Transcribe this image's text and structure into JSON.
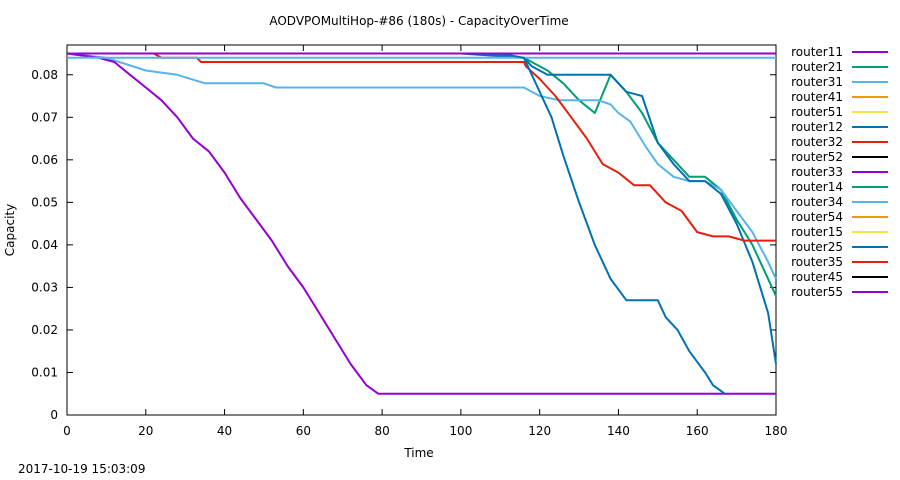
{
  "chart_data": {
    "type": "line",
    "title": "AODVPOMultiHop-#86 (180s) - CapacityOverTime",
    "xlabel": "Time",
    "ylabel": "Capacity",
    "xlim": [
      0,
      180
    ],
    "ylim": [
      0,
      0.087
    ],
    "xticks": [
      0,
      20,
      40,
      60,
      80,
      100,
      120,
      140,
      160,
      180
    ],
    "yticks": [
      0,
      0.01,
      0.02,
      0.03,
      0.04,
      0.05,
      0.06,
      0.07,
      0.08
    ],
    "ytick_labels": [
      "0",
      "0.01",
      "0.02",
      "0.03",
      "0.04",
      "0.05",
      "0.06",
      "0.07",
      "0.08"
    ],
    "grid": false,
    "legend_position": "right",
    "series": [
      {
        "name": "router11",
        "color": "#9400d3",
        "x": [
          0,
          180
        ],
        "y": [
          0.085,
          0.085
        ]
      },
      {
        "name": "router21",
        "color": "#009e73",
        "x": [
          0,
          105,
          116,
          118,
          122,
          126,
          130,
          134,
          138,
          142,
          146,
          150,
          154,
          158,
          162,
          166,
          170,
          174,
          178,
          180
        ],
        "y": [
          0.085,
          0.085,
          0.084,
          0.083,
          0.081,
          0.078,
          0.074,
          0.071,
          0.08,
          0.076,
          0.071,
          0.064,
          0.06,
          0.056,
          0.056,
          0.053,
          0.046,
          0.04,
          0.032,
          0.028
        ]
      },
      {
        "name": "router31",
        "color": "#56b4e9",
        "x": [
          0,
          10,
          20,
          28,
          35,
          50,
          53,
          80,
          100,
          116,
          120,
          125,
          135,
          138,
          140,
          143,
          147,
          150,
          154,
          158,
          162,
          166,
          170,
          174,
          178,
          180
        ],
        "y": [
          0.085,
          0.084,
          0.081,
          0.08,
          0.078,
          0.078,
          0.077,
          0.077,
          0.077,
          0.077,
          0.075,
          0.074,
          0.074,
          0.073,
          0.071,
          0.069,
          0.063,
          0.059,
          0.056,
          0.055,
          0.055,
          0.053,
          0.048,
          0.043,
          0.036,
          0.032
        ]
      },
      {
        "name": "router41",
        "color": "#e69f00",
        "x": [],
        "y": []
      },
      {
        "name": "router51",
        "color": "#f0e442",
        "x": [],
        "y": []
      },
      {
        "name": "router12",
        "color": "#0072b2",
        "x": [
          0,
          100,
          116,
          118,
          122,
          126,
          130,
          134,
          138,
          142,
          146,
          150,
          154,
          158,
          162,
          166,
          170,
          174,
          178,
          180
        ],
        "y": [
          0.085,
          0.085,
          0.084,
          0.082,
          0.08,
          0.08,
          0.08,
          0.08,
          0.08,
          0.076,
          0.075,
          0.064,
          0.059,
          0.055,
          0.055,
          0.052,
          0.045,
          0.036,
          0.024,
          0.012
        ]
      },
      {
        "name": "router32",
        "color": "#e51e10",
        "x": [
          0,
          22,
          24,
          33,
          34,
          116,
          116.5,
          120,
          124,
          128,
          132,
          136,
          140,
          144,
          148,
          152,
          156,
          160,
          164,
          168,
          172,
          176,
          180
        ],
        "y": [
          0.085,
          0.085,
          0.084,
          0.084,
          0.083,
          0.083,
          0.082,
          0.079,
          0.075,
          0.07,
          0.065,
          0.059,
          0.057,
          0.054,
          0.054,
          0.05,
          0.048,
          0.043,
          0.042,
          0.042,
          0.041,
          0.041,
          0.041
        ]
      },
      {
        "name": "router52",
        "color": "#000000",
        "x": [],
        "y": []
      },
      {
        "name": "router33",
        "color": "#9400d3",
        "x": [
          0,
          8,
          12,
          16,
          20,
          24,
          28,
          32,
          36,
          40,
          44,
          48,
          52,
          56,
          60,
          64,
          68,
          72,
          76,
          79,
          80,
          100,
          120,
          140,
          160,
          180
        ],
        "y": [
          0.085,
          0.084,
          0.083,
          0.08,
          0.077,
          0.074,
          0.07,
          0.065,
          0.062,
          0.057,
          0.051,
          0.046,
          0.041,
          0.035,
          0.03,
          0.024,
          0.018,
          0.012,
          0.007,
          0.005,
          0.005,
          0.005,
          0.005,
          0.005,
          0.005,
          0.005
        ]
      },
      {
        "name": "router14",
        "color": "#009e73",
        "x": [],
        "y": []
      },
      {
        "name": "router34",
        "color": "#56b4e9",
        "x": [
          0,
          180
        ],
        "y": [
          0.084,
          0.084
        ]
      },
      {
        "name": "router54",
        "color": "#e69f00",
        "x": [],
        "y": []
      },
      {
        "name": "router15",
        "color": "#f0e442",
        "x": [],
        "y": []
      },
      {
        "name": "router25",
        "color": "#0072b2",
        "x": [
          0,
          110,
          116,
          118,
          120,
          123,
          126,
          130,
          134,
          138,
          142,
          146,
          150,
          152,
          155,
          158,
          162,
          164,
          167
        ],
        "y": [
          0.085,
          0.085,
          0.084,
          0.08,
          0.076,
          0.07,
          0.061,
          0.05,
          0.04,
          0.032,
          0.027,
          0.027,
          0.027,
          0.023,
          0.02,
          0.015,
          0.01,
          0.007,
          0.005
        ]
      },
      {
        "name": "router35",
        "color": "#e51e10",
        "x": [],
        "y": []
      },
      {
        "name": "router45",
        "color": "#000000",
        "x": [],
        "y": []
      },
      {
        "name": "router55",
        "color": "#9400d3",
        "x": [
          0,
          100,
          120,
          140,
          160,
          180
        ],
        "y": [
          0.085,
          0.085,
          0.085,
          0.085,
          0.085,
          0.085
        ]
      }
    ]
  },
  "footer": {
    "timestamp": "2017-10-19 15:03:09"
  }
}
